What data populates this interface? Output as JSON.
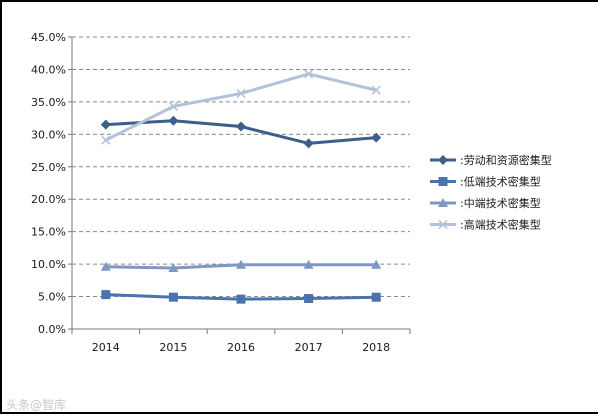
{
  "chart_data": {
    "type": "line",
    "categories": [
      "2014",
      "2015",
      "2016",
      "2017",
      "2018"
    ],
    "ylim": [
      0,
      45
    ],
    "yticks": [
      "0.0%",
      "5.0%",
      "10.0%",
      "15.0%",
      "20.0%",
      "25.0%",
      "30.0%",
      "35.0%",
      "40.0%",
      "45.0%"
    ],
    "grid": true,
    "legend_position": "right",
    "series": [
      {
        "name": "劳动和资源密集型",
        "values": [
          31.5,
          32.1,
          31.2,
          28.6,
          29.5
        ],
        "color": "#3d5d8a",
        "marker": "diamond"
      },
      {
        "name": "低端技术密集型",
        "values": [
          5.3,
          4.9,
          4.6,
          4.7,
          4.9
        ],
        "color": "#4a72ae",
        "marker": "square"
      },
      {
        "name": "中端技术密集型",
        "values": [
          9.6,
          9.4,
          9.9,
          9.9,
          9.9
        ],
        "color": "#7f97c4",
        "marker": "triangle"
      },
      {
        "name": "高端技术密集型",
        "values": [
          29.1,
          34.3,
          36.3,
          39.3,
          36.8
        ],
        "color": "#b3c2dc",
        "marker": "x"
      }
    ],
    "legend_prefix": ":"
  },
  "watermark": "头条@智库"
}
